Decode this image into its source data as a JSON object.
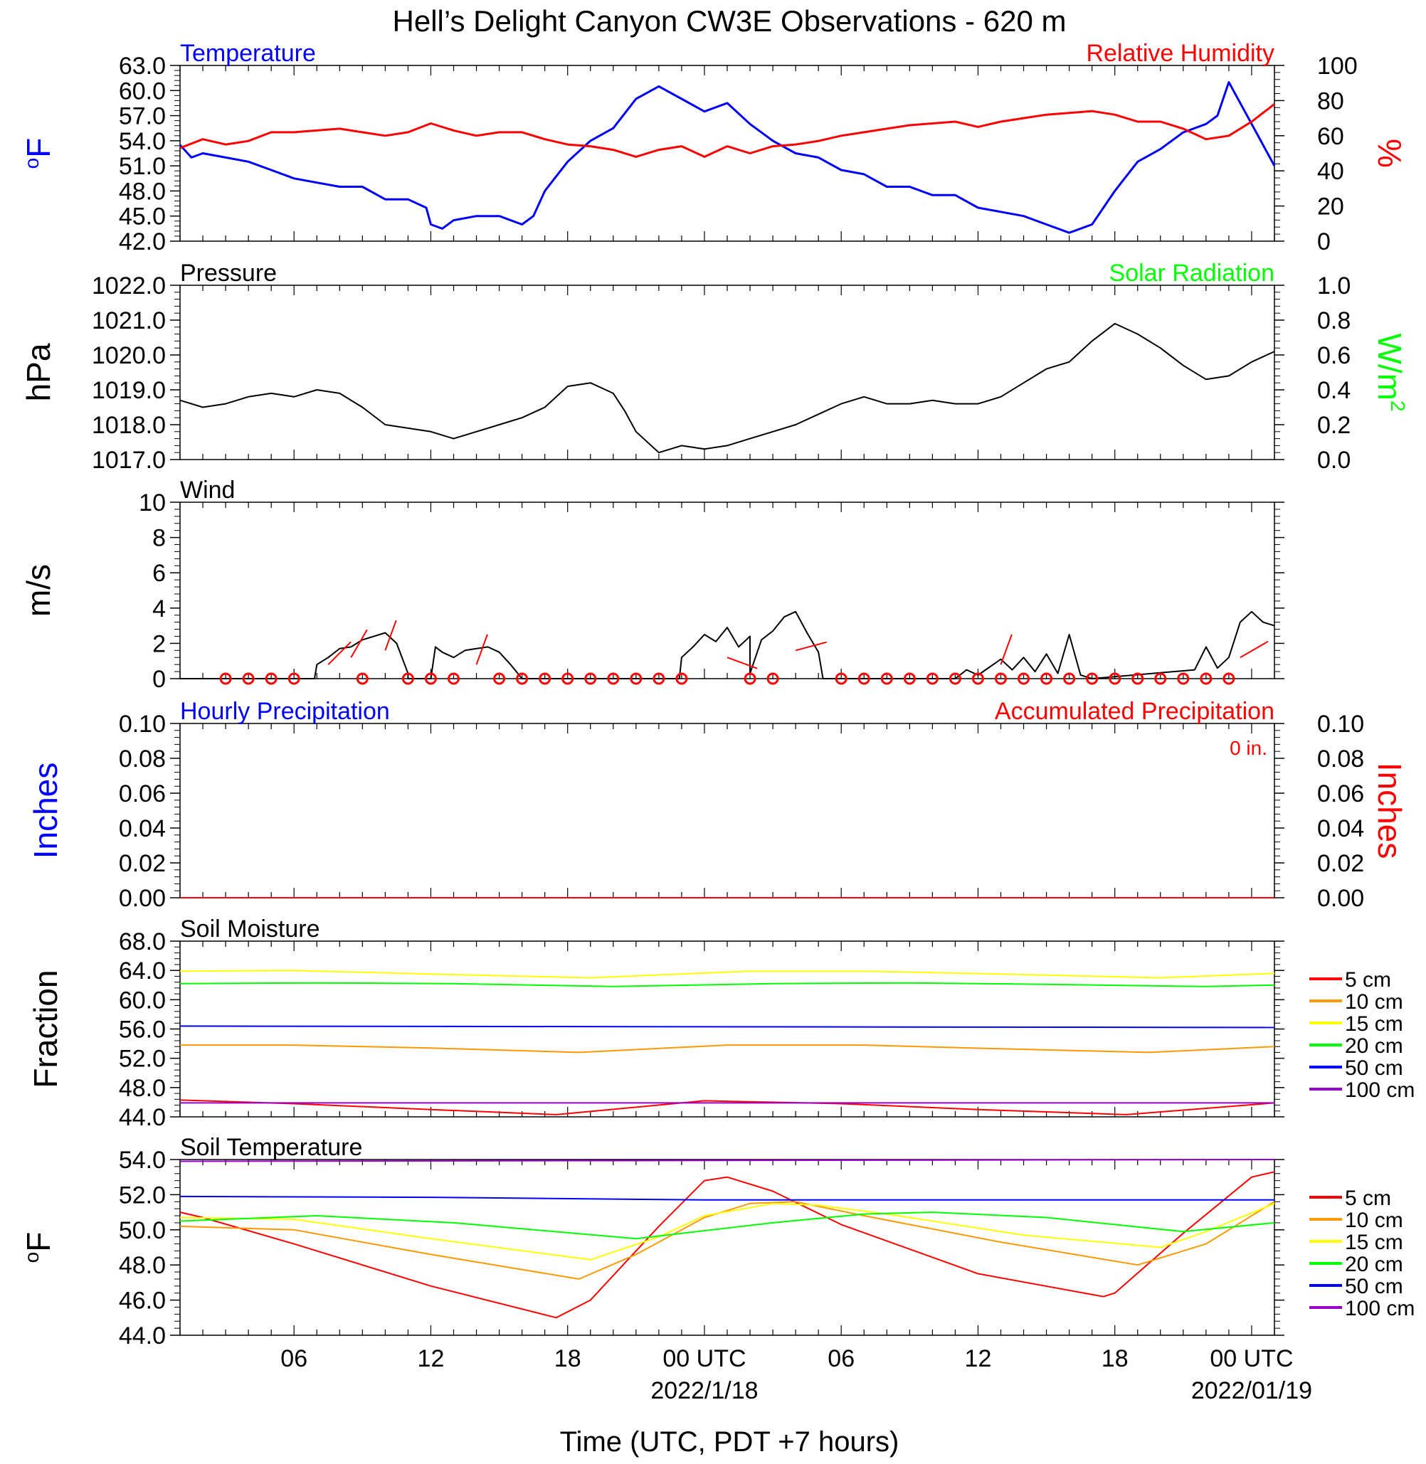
{
  "title": "Hell’s Delight Canyon CW3E Observations - 620 m",
  "xlabel": "Time (UTC, PDT +7 hours)",
  "x_axis": {
    "ticks": [
      {
        "h": 6,
        "label": "06"
      },
      {
        "h": 12,
        "label": "12"
      },
      {
        "h": 18,
        "label": "18"
      },
      {
        "h": 24,
        "label": "00 UTC"
      },
      {
        "h": 30,
        "label": "06"
      },
      {
        "h": 36,
        "label": "12"
      },
      {
        "h": 42,
        "label": "18"
      },
      {
        "h": 48,
        "label": "00 UTC"
      }
    ],
    "date_labels": [
      {
        "h": 24,
        "label": "2022/1/18"
      },
      {
        "h": 48,
        "label": "2022/01/19"
      }
    ],
    "range_hours": [
      1,
      49
    ]
  },
  "colors": {
    "blue": "#0000ff",
    "red": "#ff0000",
    "green": "#00ff00",
    "black": "#000000",
    "orange": "#ff9900",
    "yellow": "#ffff00",
    "purple": "#9900cc"
  },
  "chart_data": [
    {
      "type": "line",
      "panel": "temperature_rh",
      "left_title": "Temperature",
      "right_title": "Relative Humidity",
      "ylabel_left": "oF",
      "ylabel_right": "%",
      "ylim_left": [
        42,
        63
      ],
      "yticks_left": [
        "63.0",
        "60.0",
        "57.0",
        "54.0",
        "51.0",
        "48.0",
        "45.0",
        "42.0"
      ],
      "ylim_right": [
        0,
        100
      ],
      "yticks_right": [
        "100",
        "80",
        "60",
        "40",
        "20",
        "0"
      ],
      "series": [
        {
          "name": "Temperature",
          "axis": "left",
          "color": "#0000ff",
          "x": [
            1,
            1.5,
            2,
            3,
            4,
            5,
            6,
            7,
            8,
            9,
            10,
            11,
            11.8,
            12,
            12.5,
            13,
            14,
            15,
            16,
            16.5,
            17,
            18,
            19,
            20,
            21,
            22,
            23,
            24,
            25,
            26,
            27,
            28,
            29,
            30,
            31,
            32,
            33,
            34,
            35,
            36,
            37,
            38,
            39,
            40,
            41,
            42,
            43,
            44,
            45,
            46,
            46.5,
            47,
            48,
            49
          ],
          "y": [
            53.5,
            52,
            52.5,
            52,
            51.5,
            50.5,
            49.5,
            49,
            48.5,
            48.5,
            47,
            47,
            46,
            44,
            43.5,
            44.5,
            45,
            45,
            44,
            45,
            48,
            51.5,
            54,
            55.5,
            59,
            60.5,
            59,
            57.5,
            58.5,
            56,
            54,
            52.5,
            52,
            50.5,
            50,
            48.5,
            48.5,
            47.5,
            47.5,
            46,
            45.5,
            45,
            44,
            43,
            44,
            48,
            51.5,
            53,
            55,
            56,
            57,
            61,
            56,
            51
          ]
        },
        {
          "name": "Relative Humidity",
          "axis": "right",
          "color": "#ff0000",
          "x": [
            1,
            2,
            3,
            4,
            5,
            6,
            7,
            8,
            9,
            10,
            11,
            12,
            13,
            14,
            15,
            16,
            17,
            18,
            19,
            20,
            21,
            22,
            23,
            24,
            25,
            26,
            27,
            28,
            29,
            30,
            31,
            32,
            33,
            34,
            35,
            36,
            37,
            38,
            39,
            40,
            41,
            42,
            43,
            44,
            45,
            46,
            47,
            48,
            49
          ],
          "y": [
            53,
            58,
            55,
            57,
            62,
            62,
            63,
            64,
            62,
            60,
            62,
            67,
            63,
            60,
            62,
            62,
            58,
            55,
            54,
            52,
            48,
            52,
            54,
            48,
            54,
            50,
            54,
            55,
            57,
            60,
            62,
            64,
            66,
            67,
            68,
            65,
            68,
            70,
            72,
            73,
            74,
            72,
            68,
            68,
            64,
            58,
            60,
            68,
            78
          ]
        }
      ]
    },
    {
      "type": "line",
      "panel": "pressure_solar",
      "left_title": "Pressure",
      "right_title": "Solar Radiation",
      "ylabel_left": "hPa",
      "ylabel_right": "W/m2",
      "ylim_left": [
        1017,
        1022
      ],
      "yticks_left": [
        "1022.0",
        "1021.0",
        "1020.0",
        "1019.0",
        "1018.0",
        "1017.0"
      ],
      "ylim_right": [
        0,
        1
      ],
      "yticks_right": [
        "1.0",
        "0.8",
        "0.6",
        "0.4",
        "0.2",
        "0.0"
      ],
      "series": [
        {
          "name": "Pressure",
          "axis": "left",
          "color": "#000000",
          "x": [
            1,
            2,
            3,
            4,
            5,
            6,
            7,
            8,
            9,
            10,
            11,
            12,
            13,
            14,
            15,
            16,
            17,
            18,
            19,
            20,
            20.5,
            21,
            22,
            23,
            24,
            25,
            26,
            27,
            28,
            29,
            30,
            31,
            32,
            33,
            34,
            35,
            36,
            37,
            38,
            39,
            40,
            41,
            42,
            43,
            44,
            45,
            46,
            47,
            48,
            49
          ],
          "y": [
            1018.7,
            1018.5,
            1018.6,
            1018.8,
            1018.9,
            1018.8,
            1019,
            1018.9,
            1018.5,
            1018,
            1017.9,
            1017.8,
            1017.6,
            1017.8,
            1018,
            1018.2,
            1018.5,
            1019.1,
            1019.2,
            1018.9,
            1018.4,
            1017.8,
            1017.2,
            1017.4,
            1017.3,
            1017.4,
            1017.6,
            1017.8,
            1018,
            1018.3,
            1018.6,
            1018.8,
            1018.6,
            1018.6,
            1018.7,
            1018.6,
            1018.6,
            1018.8,
            1019.2,
            1019.6,
            1019.8,
            1020.4,
            1020.9,
            1020.6,
            1020.2,
            1019.7,
            1019.3,
            1019.4,
            1019.8,
            1020.1
          ]
        },
        {
          "name": "Solar Radiation",
          "axis": "right",
          "color": "#00ff00",
          "x": [],
          "y": []
        }
      ]
    },
    {
      "type": "line",
      "panel": "wind",
      "left_title": "Wind",
      "ylabel_left": "m/s",
      "ylim_left": [
        0,
        10
      ],
      "yticks_left": [
        "10",
        "8",
        "6",
        "4",
        "2",
        "0"
      ],
      "series": [
        {
          "name": "Wind",
          "axis": "left",
          "color": "#000000",
          "x": [
            1,
            6.9,
            7,
            7.5,
            8,
            8.5,
            9,
            9.5,
            10,
            10.5,
            11,
            11,
            12,
            12.2,
            12.5,
            13,
            13.5,
            14,
            14.5,
            15,
            15.5,
            16,
            16,
            22.9,
            23,
            23.5,
            24,
            24.5,
            25,
            25.5,
            26,
            26,
            26.5,
            27,
            27.5,
            28,
            28.5,
            29,
            29.2,
            30,
            35,
            35.5,
            36,
            37,
            37.5,
            38,
            38.5,
            39,
            39.5,
            40,
            40.5,
            41,
            41,
            45.5,
            46,
            46.5,
            47,
            47.5,
            48,
            48.5,
            49
          ],
          "y": [
            0,
            0,
            0.8,
            1.2,
            1.7,
            1.8,
            2.2,
            2.4,
            2.6,
            2,
            0.3,
            0,
            0,
            1.8,
            1.5,
            1.2,
            1.6,
            1.7,
            1.8,
            1.5,
            0.8,
            0,
            0,
            0,
            1.2,
            1.8,
            2.5,
            2.1,
            2.9,
            1.8,
            2.4,
            0.3,
            2.2,
            2.7,
            3.5,
            3.8,
            2.6,
            1.5,
            0,
            0,
            0,
            0.5,
            0.2,
            1.1,
            0.5,
            1.2,
            0.4,
            1.4,
            0.3,
            2.5,
            0.2,
            0,
            0,
            0.5,
            1.8,
            0.6,
            1.2,
            3.2,
            3.8,
            3.2,
            3.0
          ]
        }
      ],
      "circle_markers_h": [
        3,
        4,
        5,
        6,
        9,
        11,
        12,
        13,
        15,
        16,
        17,
        18,
        19,
        20,
        21,
        22,
        23,
        26,
        27,
        30,
        31,
        32,
        33,
        34,
        35,
        36,
        37,
        38,
        39,
        40,
        41,
        42,
        43,
        44,
        45,
        46,
        47
      ],
      "barbs_h": [
        7.5,
        8.5,
        10,
        14,
        25,
        28,
        37,
        47.5
      ]
    },
    {
      "type": "line",
      "panel": "precipitation",
      "left_title": "Hourly Precipitation",
      "right_title": "Accumulated Precipitation",
      "annotation": "0 in.",
      "ylabel_left": "Inches",
      "ylabel_right": "Inches",
      "ylim_left": [
        0,
        0.1
      ],
      "yticks_left": [
        "0.10",
        "0.08",
        "0.06",
        "0.04",
        "0.02",
        "0.00"
      ],
      "ylim_right": [
        0,
        0.1
      ],
      "yticks_right": [
        "0.10",
        "0.08",
        "0.06",
        "0.04",
        "0.02",
        "0.00"
      ],
      "series": [
        {
          "name": "Hourly Precipitation",
          "axis": "left",
          "color": "#0000ff",
          "x": [
            1,
            49
          ],
          "y": [
            0,
            0
          ]
        },
        {
          "name": "Accumulated Precipitation",
          "axis": "right",
          "color": "#ff0000",
          "x": [
            1,
            49
          ],
          "y": [
            0,
            0
          ]
        }
      ]
    },
    {
      "type": "line",
      "panel": "soil_moisture",
      "left_title": "Soil Moisture",
      "ylabel_left": "Fraction",
      "ylim_left": [
        44,
        68
      ],
      "yticks_left": [
        "68.0",
        "64.0",
        "60.0",
        "56.0",
        "52.0",
        "48.0",
        "44.0"
      ],
      "legend": [
        "5 cm",
        "10 cm",
        "15 cm",
        "20 cm",
        "50 cm",
        "100 cm"
      ],
      "series": [
        {
          "name": "5 cm",
          "axis": "left",
          "color": "#ff0000",
          "x": [
            1,
            6,
            12,
            17.5,
            24,
            30,
            36,
            42.5,
            49
          ],
          "y": [
            46.3,
            45.8,
            45,
            44.3,
            46.2,
            45.8,
            45,
            44.3,
            45.9
          ]
        },
        {
          "name": "10 cm",
          "axis": "left",
          "color": "#ff9900",
          "x": [
            1,
            6,
            12,
            18.5,
            25,
            31,
            37,
            43.5,
            49
          ],
          "y": [
            53.8,
            53.8,
            53.4,
            52.8,
            53.8,
            53.8,
            53.3,
            52.8,
            53.6
          ]
        },
        {
          "name": "15 cm",
          "axis": "left",
          "color": "#ffff00",
          "x": [
            1,
            6,
            12,
            19,
            26,
            31,
            37,
            44,
            49
          ],
          "y": [
            63.9,
            64,
            63.5,
            63,
            63.9,
            63.9,
            63.5,
            63,
            63.6
          ]
        },
        {
          "name": "20 cm",
          "axis": "left",
          "color": "#00ff00",
          "x": [
            1,
            7,
            13,
            20,
            27,
            33,
            39,
            46,
            49
          ],
          "y": [
            62.2,
            62.3,
            62.2,
            61.8,
            62.2,
            62.3,
            62.1,
            61.8,
            62
          ]
        },
        {
          "name": "50 cm",
          "axis": "left",
          "color": "#0000ff",
          "x": [
            1,
            49
          ],
          "y": [
            56.4,
            56.2
          ]
        },
        {
          "name": "100 cm",
          "axis": "left",
          "color": "#9900cc",
          "x": [
            1,
            49
          ],
          "y": [
            45.9,
            45.9
          ]
        }
      ]
    },
    {
      "type": "line",
      "panel": "soil_temperature",
      "left_title": "Soil Temperature",
      "ylabel_left": "oF",
      "ylim_left": [
        44,
        54
      ],
      "yticks_left": [
        "54.0",
        "52.0",
        "50.0",
        "48.0",
        "46.0",
        "44.0"
      ],
      "legend": [
        "5 cm",
        "10 cm",
        "15 cm",
        "20 cm",
        "50 cm",
        "100 cm"
      ],
      "series": [
        {
          "name": "5 cm",
          "axis": "left",
          "color": "#ff0000",
          "x": [
            1,
            2,
            6,
            12,
            17.5,
            19,
            22,
            24,
            25,
            27,
            30,
            36,
            41.5,
            42,
            45,
            48,
            49
          ],
          "y": [
            51,
            50.7,
            49.2,
            46.8,
            45,
            46,
            50.2,
            52.8,
            53,
            52.2,
            50.3,
            47.5,
            46.2,
            46.4,
            49.8,
            53,
            53.3
          ]
        },
        {
          "name": "10 cm",
          "axis": "left",
          "color": "#ff9900",
          "x": [
            1,
            6,
            12,
            18.5,
            21,
            24,
            26,
            28,
            31,
            37,
            43,
            46,
            49
          ],
          "y": [
            50.2,
            50,
            48.6,
            47.2,
            48.6,
            50.7,
            51.5,
            51.6,
            50.8,
            49.3,
            48,
            49.2,
            51.6
          ]
        },
        {
          "name": "15 cm",
          "axis": "left",
          "color": "#ffff00",
          "x": [
            1,
            6,
            12,
            19,
            22,
            24,
            27,
            29,
            32,
            38,
            44,
            46,
            49
          ],
          "y": [
            50.7,
            50.6,
            49.5,
            48.3,
            49.6,
            50.8,
            51.5,
            51.4,
            50.9,
            49.7,
            49,
            49.9,
            51.5
          ]
        },
        {
          "name": "20 cm",
          "axis": "left",
          "color": "#00ff00",
          "x": [
            1,
            7,
            13,
            21,
            27,
            31,
            34,
            39,
            45,
            49
          ],
          "y": [
            50.5,
            50.8,
            50.4,
            49.5,
            50.4,
            50.9,
            51,
            50.7,
            49.9,
            50.4
          ]
        },
        {
          "name": "50 cm",
          "axis": "left",
          "color": "#0000ff",
          "x": [
            1,
            12,
            24,
            36,
            49
          ],
          "y": [
            51.9,
            51.85,
            51.7,
            51.7,
            51.7
          ]
        },
        {
          "name": "100 cm",
          "axis": "left",
          "color": "#9900cc",
          "x": [
            1,
            49
          ],
          "y": [
            53.9,
            54
          ]
        }
      ]
    }
  ]
}
